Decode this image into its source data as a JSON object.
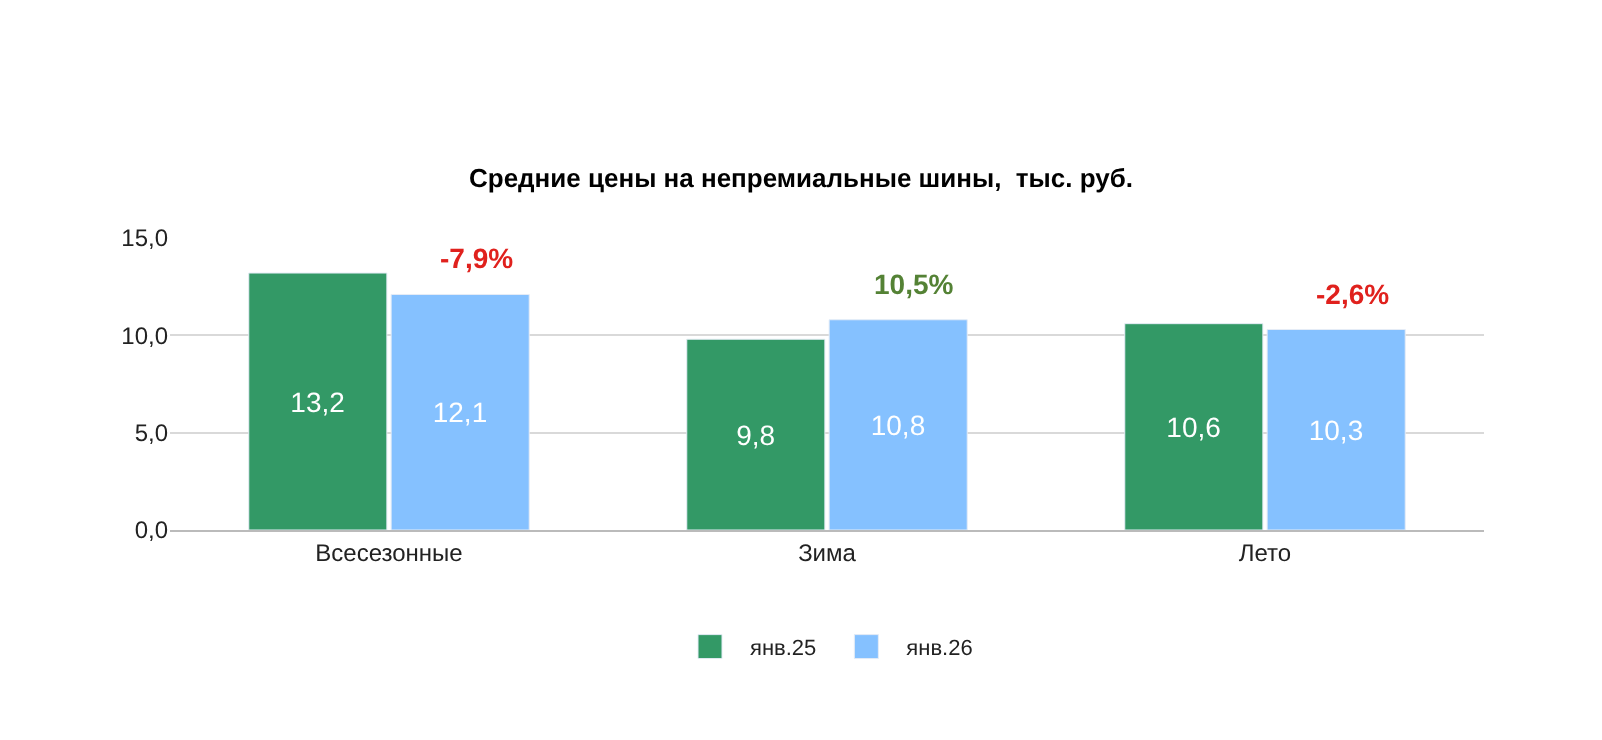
{
  "chart_data": {
    "type": "bar",
    "title": "Средние цены на непремиальные шины,  тыс. руб.",
    "categories": [
      "Всесезонные",
      "Зима",
      "Лето"
    ],
    "series": [
      {
        "name": "янв.25",
        "color": "#339966",
        "values": [
          13.2,
          9.8,
          10.6
        ],
        "value_labels": [
          "13,2",
          "9,8",
          "10,6"
        ]
      },
      {
        "name": "янв.26",
        "color": "#85c1ff",
        "values": [
          12.1,
          10.8,
          10.3
        ],
        "value_labels": [
          "12,1",
          "10,8",
          "10,3"
        ]
      }
    ],
    "annotations": [
      {
        "text": "-7,9%",
        "x": "Всесезонные",
        "y": 12.1
      },
      {
        "text": "10,5%",
        "x": "Зима",
        "y": 10.8
      },
      {
        "text": "-2,6%",
        "x": "Лето",
        "y": 10.3
      }
    ],
    "ylim": [
      0,
      15
    ],
    "yticks": [
      {
        "value": 0,
        "label": "0,0"
      },
      {
        "value": 5,
        "label": "5,0"
      },
      {
        "value": 10,
        "label": "10,0"
      },
      {
        "value": 15,
        "label": "15,0"
      }
    ],
    "grid": "y",
    "legend": "bottom"
  }
}
